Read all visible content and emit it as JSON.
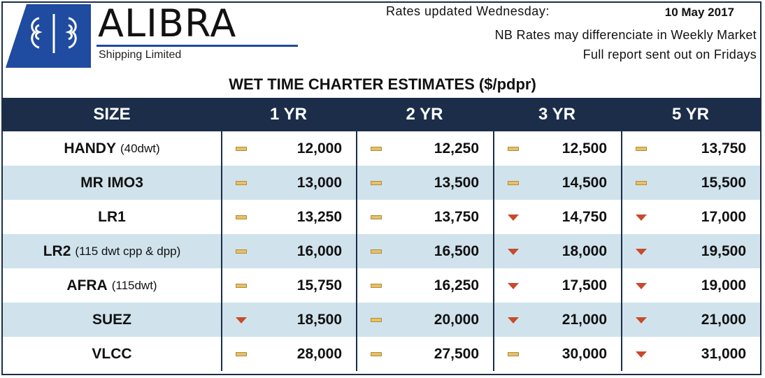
{
  "brand": {
    "name": "ALIBRA",
    "subtitle": "Shipping Limited",
    "colors": {
      "navy": "#1b2d49",
      "blue": "#1f4ba0",
      "alt_row": "#d0e3ec"
    }
  },
  "update": {
    "label": "Rates updated Wednesday:",
    "date": "10 May 2017",
    "note1": "NB Rates may differenciate in Weekly Market",
    "note2": "Full report sent out on Fridays"
  },
  "table": {
    "title": "WET TIME CHARTER ESTIMATES ($/pdpr)",
    "headers": [
      "SIZE",
      "1 YR",
      "2 YR",
      "3 YR",
      "5 YR"
    ],
    "rows": [
      {
        "size": "HANDY",
        "note": "(40dwt)",
        "cells": [
          {
            "trend": "flat",
            "value": "12,000"
          },
          {
            "trend": "flat",
            "value": "12,250"
          },
          {
            "trend": "flat",
            "value": "12,500"
          },
          {
            "trend": "flat",
            "value": "13,750"
          }
        ]
      },
      {
        "size": "MR IMO3",
        "note": "",
        "cells": [
          {
            "trend": "flat",
            "value": "13,000"
          },
          {
            "trend": "flat",
            "value": "13,500"
          },
          {
            "trend": "flat",
            "value": "14,500"
          },
          {
            "trend": "flat",
            "value": "15,500"
          }
        ]
      },
      {
        "size": "LR1",
        "note": "",
        "cells": [
          {
            "trend": "flat",
            "value": "13,250"
          },
          {
            "trend": "flat",
            "value": "13,750"
          },
          {
            "trend": "down",
            "value": "14,750"
          },
          {
            "trend": "down",
            "value": "17,000"
          }
        ]
      },
      {
        "size": "LR2",
        "note": "(115 dwt cpp & dpp)",
        "cells": [
          {
            "trend": "flat",
            "value": "16,000"
          },
          {
            "trend": "flat",
            "value": "16,500"
          },
          {
            "trend": "down",
            "value": "18,000"
          },
          {
            "trend": "down",
            "value": "19,500"
          }
        ]
      },
      {
        "size": "AFRA",
        "note": "(115dwt)",
        "cells": [
          {
            "trend": "flat",
            "value": "15,750"
          },
          {
            "trend": "flat",
            "value": "16,250"
          },
          {
            "trend": "down",
            "value": "17,500"
          },
          {
            "trend": "down",
            "value": "19,000"
          }
        ]
      },
      {
        "size": "SUEZ",
        "note": "",
        "cells": [
          {
            "trend": "down",
            "value": "18,500"
          },
          {
            "trend": "flat",
            "value": "20,000"
          },
          {
            "trend": "down",
            "value": "21,000"
          },
          {
            "trend": "down",
            "value": "21,000"
          }
        ]
      },
      {
        "size": "VLCC",
        "note": "",
        "cells": [
          {
            "trend": "flat",
            "value": "28,000"
          },
          {
            "trend": "flat",
            "value": "27,500"
          },
          {
            "trend": "flat",
            "value": "30,000"
          },
          {
            "trend": "down",
            "value": "31,000"
          }
        ]
      }
    ]
  }
}
